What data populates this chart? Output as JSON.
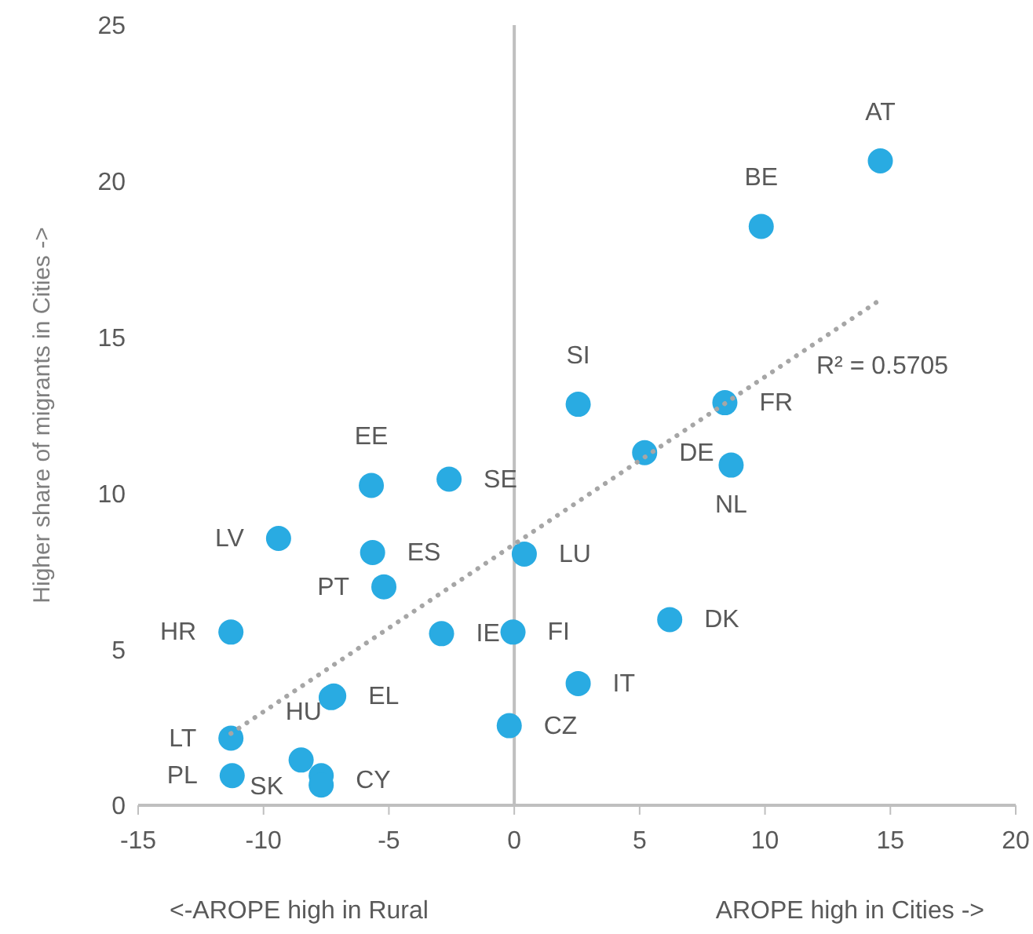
{
  "chart_data": {
    "type": "scatter",
    "ylabel": "Higher share of migrants in Cities ->",
    "xlim": [
      -15,
      20
    ],
    "xticks": [
      -15,
      -10,
      -5,
      0,
      5,
      10,
      15,
      20
    ],
    "ylim": [
      0,
      25
    ],
    "yticks": [
      0,
      5,
      10,
      15,
      20,
      25
    ],
    "ref_lines": [
      {
        "axis": "x",
        "value": 0,
        "color": "#bfbfbf"
      }
    ],
    "series": [
      {
        "color": "#29abe2",
        "marker": "circle",
        "x": [
          14.6,
          9.85,
          2.55,
          8.4,
          5.2,
          8.65,
          -5.7,
          -2.6,
          -9.4,
          -5.65,
          0.4,
          -5.2,
          -11.3,
          -2.9,
          -0.05,
          6.2,
          2.55,
          -7.3,
          -7.2,
          -0.2,
          -11.3,
          -11.25,
          -8.5,
          -7.7,
          -7.7
        ],
        "values": [
          20.65,
          18.55,
          12.85,
          12.9,
          11.3,
          10.9,
          10.25,
          10.45,
          8.55,
          8.1,
          8.05,
          7.0,
          5.55,
          5.5,
          5.55,
          5.95,
          3.9,
          3.45,
          3.5,
          2.55,
          2.15,
          0.95,
          1.45,
          0.95,
          0.65
        ],
        "value_labels": [
          "AT",
          "BE",
          "SI",
          "FR",
          "DE",
          "NL",
          "EE",
          "SE",
          "LV",
          "ES",
          "LU",
          "PT",
          "HR",
          "IE",
          "FI",
          "DK",
          "IT",
          "HU",
          "EL",
          "CZ",
          "LT",
          "PL",
          "SK",
          "CY",
          null
        ]
      },
      {
        "type": "line",
        "color": "#a6a6a6",
        "marker": "none",
        "line_style": "dotted",
        "x": [
          -11.3,
          14.6
        ],
        "values": [
          2.3,
          16.2
        ]
      }
    ],
    "annotations": [
      "<-AROPE high in Rural",
      "AROPE high in Cities ->",
      "R² = 0.5705"
    ]
  }
}
